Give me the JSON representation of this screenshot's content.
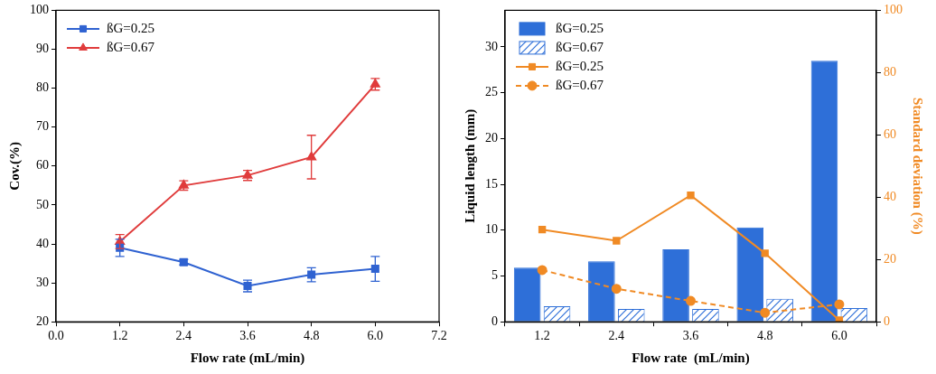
{
  "chart_data": [
    {
      "type": "line",
      "x_label": "Flow rate (mL/min)",
      "y_label": "Cov.(%)",
      "x": [
        1.2,
        2.4,
        3.6,
        4.8,
        6.0
      ],
      "series": [
        {
          "name": "ßG=0.25",
          "color": "#2f62d1",
          "marker": "square",
          "line_style": "solid",
          "values": [
            39.0,
            35.3,
            29.2,
            32.1,
            33.6
          ],
          "errors": [
            2.2,
            0.7,
            1.5,
            1.8,
            3.2
          ]
        },
        {
          "name": "ßG=0.67",
          "color": "#e03c3c",
          "marker": "triangle",
          "line_style": "solid",
          "values": [
            40.6,
            55.0,
            57.6,
            62.3,
            81.0
          ],
          "errors": [
            1.8,
            1.2,
            1.3,
            5.6,
            1.5
          ]
        }
      ],
      "xlim": [
        0,
        7.2
      ],
      "xticks": [
        {
          "value": 0,
          "label": "0.0"
        },
        1.2,
        2.4,
        3.6,
        4.8,
        {
          "value": 6,
          "label": "6.0"
        },
        7.2
      ],
      "ylim": [
        20,
        100
      ],
      "yticks": [
        20,
        30,
        40,
        50,
        60,
        70,
        80,
        90,
        100
      ],
      "grid": false,
      "legend": "upper left"
    },
    {
      "type": "bar",
      "x_label": "Flow rate  (mL/min)",
      "y_label": "Liquid length (mm)",
      "y2_label": "Standard deviation (%)",
      "categories": [
        "1.2",
        "2.4",
        "3.6",
        "4.8",
        "6.0"
      ],
      "series": [
        {
          "name": "ßG=0.25",
          "type": "bar",
          "color": "#2e6fd8",
          "values": [
            5.9,
            6.6,
            7.9,
            10.3,
            28.5
          ]
        },
        {
          "name": "ßG=0.67",
          "type": "bar",
          "color": "#2e6fd8",
          "values": [
            1.7,
            1.4,
            1.4,
            2.5,
            1.5
          ]
        },
        {
          "name": "ßG=0.25",
          "type": "line",
          "axis": "y2",
          "color": "#f08a24",
          "marker": "square",
          "line_style": "solid",
          "values": [
            29.6,
            26.0,
            40.6,
            22.0,
            0.5
          ]
        },
        {
          "name": "ßG=0.67",
          "type": "line",
          "axis": "y2",
          "color": "#f08a24",
          "marker": "circle",
          "line_style": "dashed",
          "values": [
            16.6,
            10.6,
            6.7,
            2.9,
            5.6
          ]
        }
      ],
      "ylim": [
        0,
        34
      ],
      "yticks": [
        0,
        5,
        10,
        15,
        20,
        25,
        30
      ],
      "y2lim": [
        0,
        100
      ],
      "y2ticks": [
        0,
        20,
        40,
        60,
        80,
        100
      ],
      "grid": false,
      "legend": "upper left"
    }
  ]
}
